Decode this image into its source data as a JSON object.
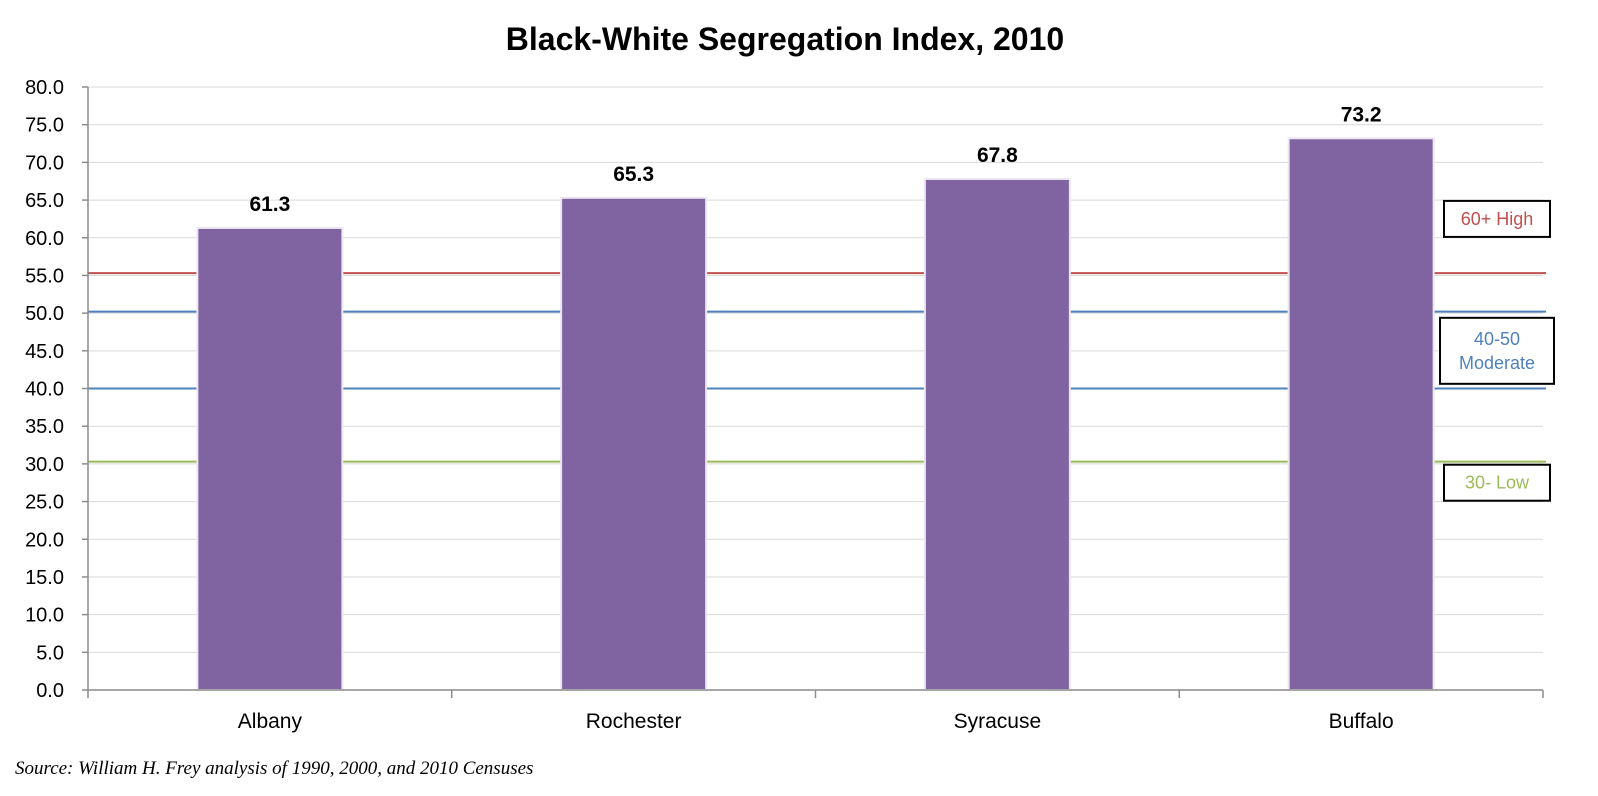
{
  "chart_data": {
    "type": "bar",
    "title": "Black-White Segregation Index, 2010",
    "categories": [
      "Albany",
      "Rochester",
      "Syracuse",
      "Buffalo"
    ],
    "values": [
      61.3,
      65.3,
      67.8,
      73.2
    ],
    "data_labels": [
      "61.3",
      "65.3",
      "67.8",
      "73.2"
    ],
    "ylim": [
      0,
      80
    ],
    "ytick_step": 5,
    "ytick_labels": [
      "0.0",
      "5.0",
      "10.0",
      "15.0",
      "20.0",
      "25.0",
      "30.0",
      "35.0",
      "40.0",
      "45.0",
      "50.0",
      "55.0",
      "60.0",
      "65.0",
      "70.0",
      "75.0",
      "80.0"
    ],
    "grid": true,
    "bar_color": "#8064a2",
    "reference_lines": [
      {
        "y": 55.3,
        "color": "#c0504d"
      },
      {
        "y": 50.2,
        "color": "#4f81bd"
      },
      {
        "y": 40.0,
        "color": "#4f81bd"
      },
      {
        "y": 30.3,
        "color": "#9bbb59"
      }
    ],
    "annotations": [
      {
        "lines": [
          "60+ High"
        ],
        "color": "#c0504d",
        "y": 62.5
      },
      {
        "lines": [
          "40-50",
          "Moderate"
        ],
        "color": "#4f81bd",
        "y": 45.0
      },
      {
        "lines": [
          "30- Low"
        ],
        "color": "#9bbb59",
        "y": 27.5
      }
    ],
    "source": "Source: William H. Frey analysis of 1990, 2000, and 2010 Censuses"
  }
}
